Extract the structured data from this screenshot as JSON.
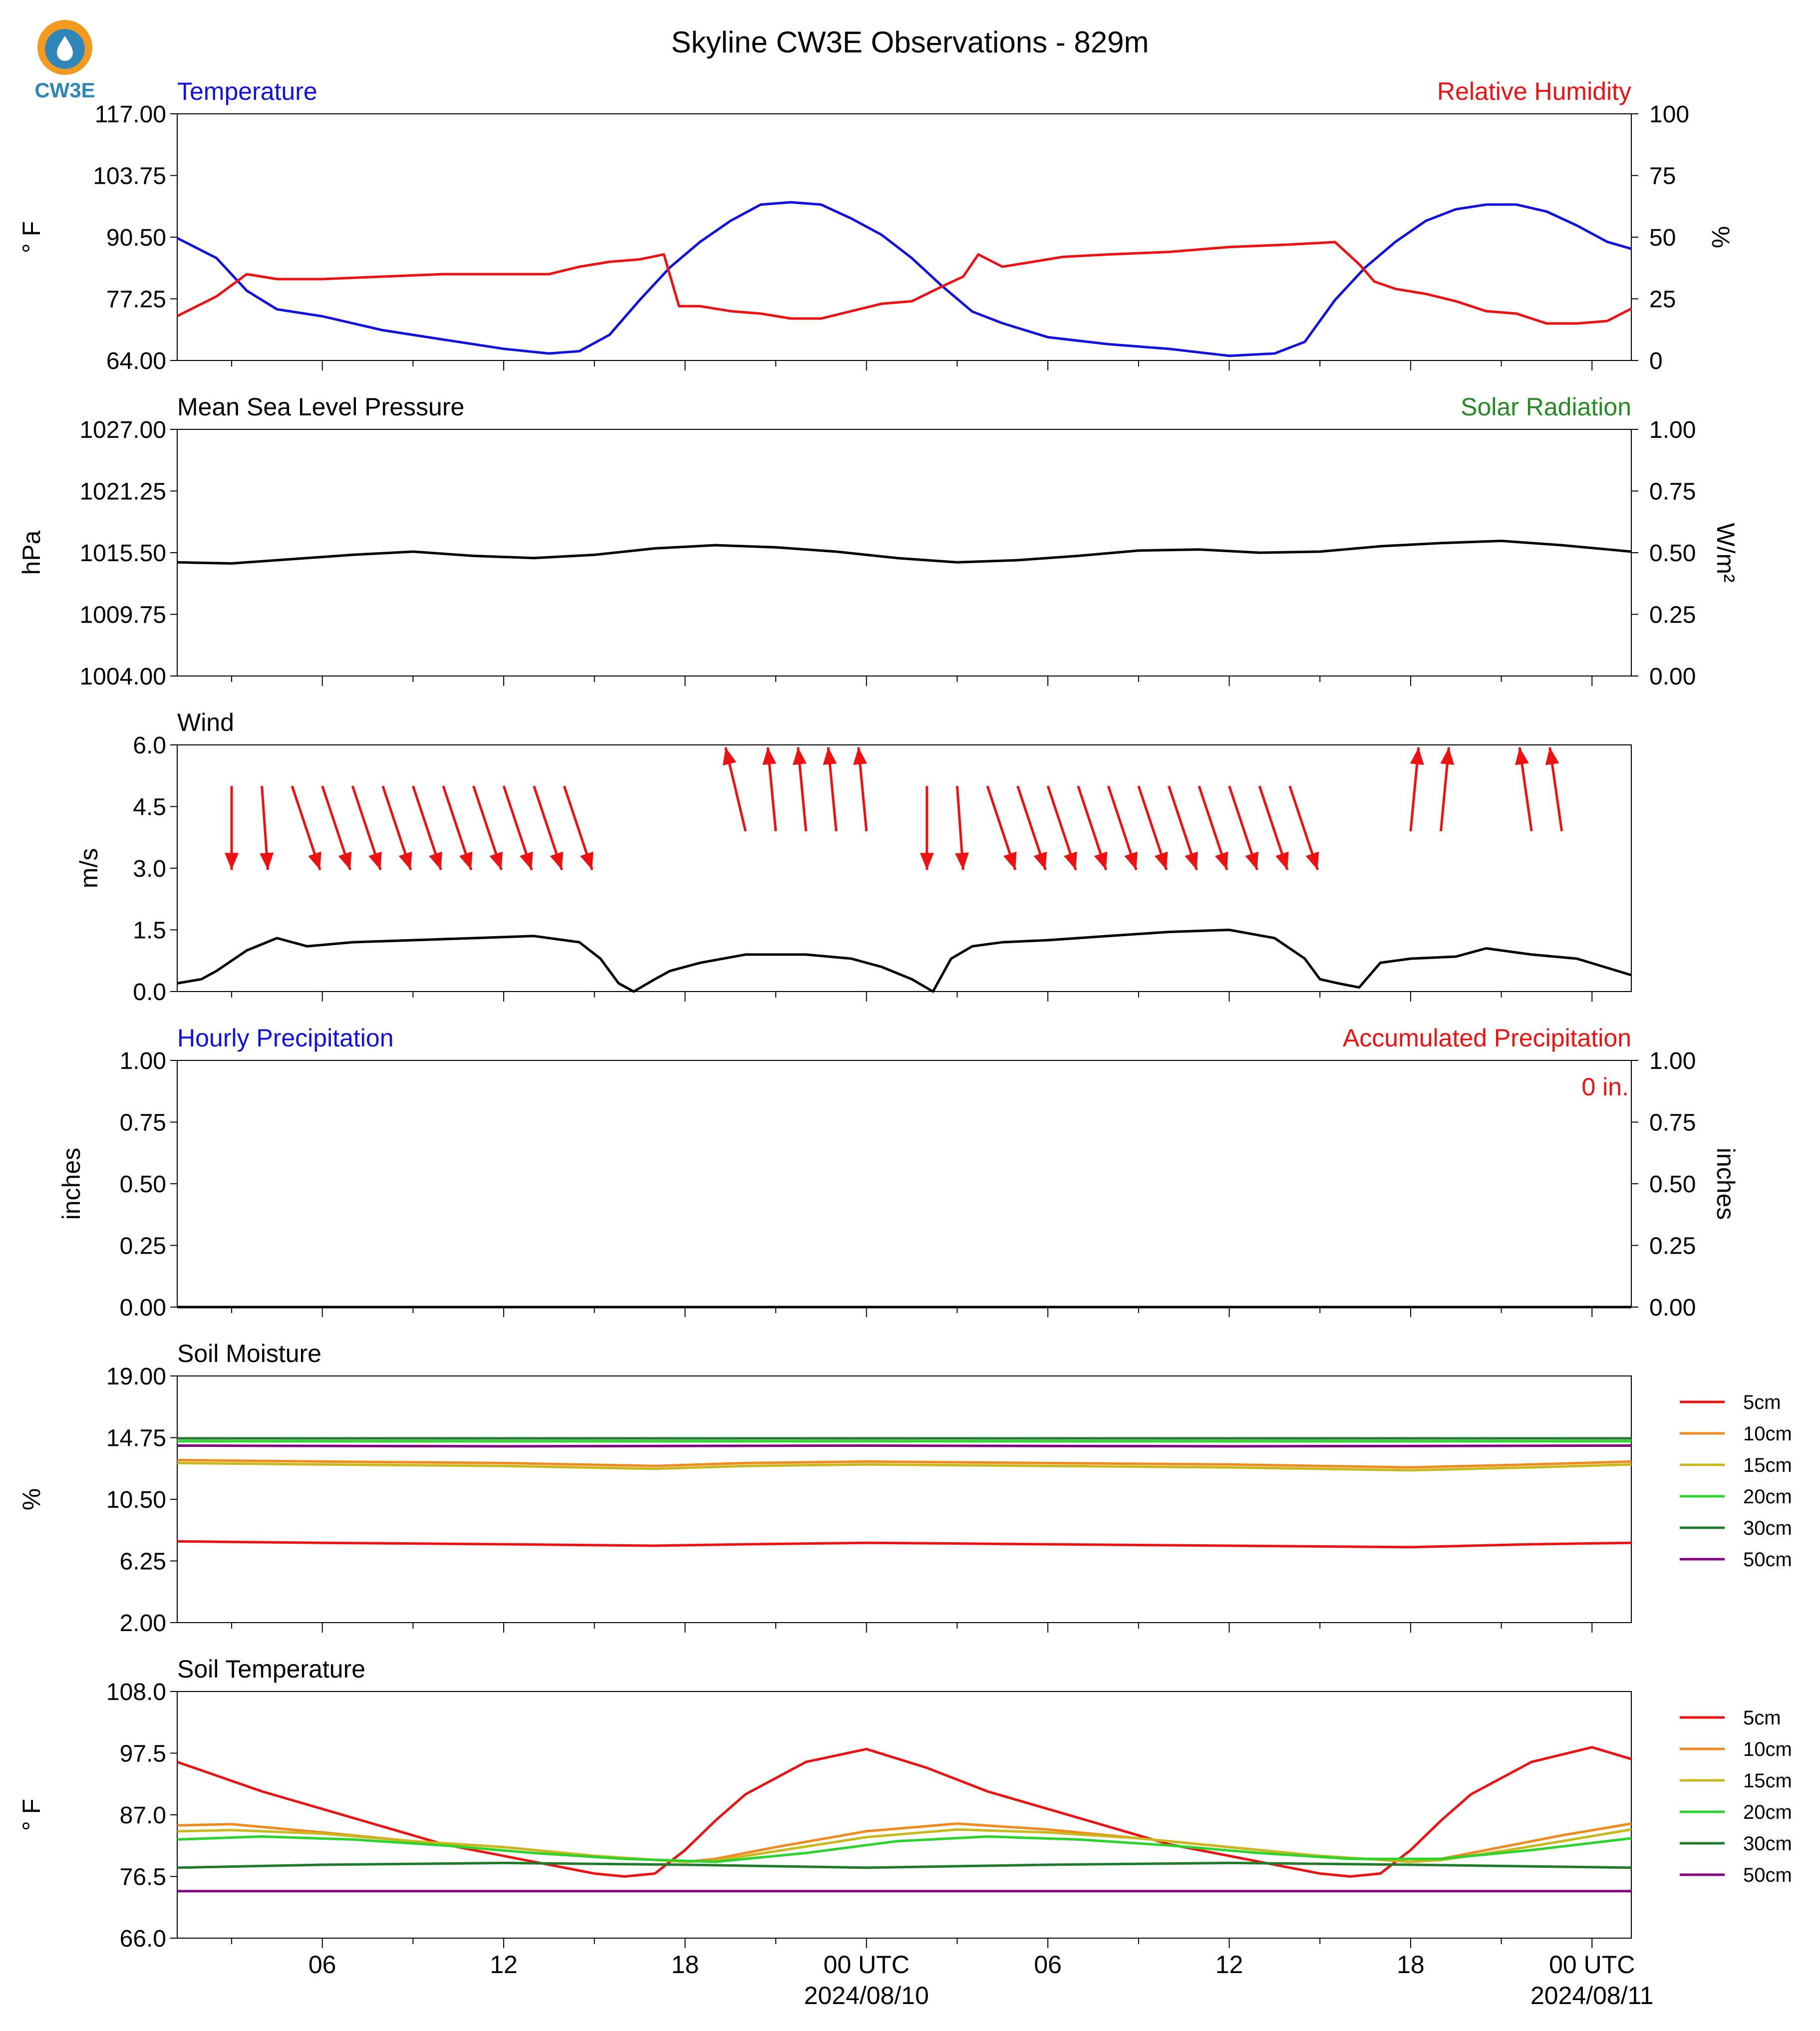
{
  "page": {
    "title": "Skyline CW3E Observations - 829m",
    "logo_text": "CW3E"
  },
  "colors": {
    "temperature": "#1010e0",
    "humidity": "#ee1111",
    "solar": "#228b22",
    "black": "#000000",
    "depths": [
      "#ee1111",
      "#f08a1c",
      "#c8b81c",
      "#2ad42a",
      "#1f7a2a",
      "#800080"
    ]
  },
  "x_axis": {
    "start_hour": 1.2,
    "end_hour": 49.3,
    "tick_hours": [
      6,
      12,
      18,
      24,
      30,
      36,
      42,
      48
    ],
    "tick_labels": [
      "06",
      "12",
      "18",
      "00 UTC\n2024/08/10",
      "06",
      "12",
      "18",
      "00 UTC\n2024/08/11"
    ]
  },
  "chart_data": [
    {
      "id": "temp_rh",
      "type": "line",
      "left_title": "Temperature",
      "right_title": "Relative Humidity",
      "ylabel": "° F",
      "ylabel_right": "%",
      "ylim": [
        64.0,
        117.0
      ],
      "ylim_right": [
        0,
        100
      ],
      "yticks": [
        "64.00",
        "77.25",
        "90.50",
        "103.75",
        "117.00"
      ],
      "yticks_right": [
        "0",
        "25",
        "50",
        "75",
        "100"
      ],
      "series": [
        {
          "name": "Temperature",
          "axis": "left",
          "x": [
            1.2,
            2.5,
            3.5,
            4.5,
            6,
            8,
            10,
            12,
            13.5,
            14.5,
            15.5,
            16.5,
            17.5,
            18.5,
            19.5,
            20.5,
            21.5,
            22.5,
            23.5,
            24.5,
            25.5,
            26.5,
            27.5,
            28.5,
            30,
            32,
            34,
            36,
            37.5,
            38.5,
            39.5,
            40.5,
            41.5,
            42.5,
            43.5,
            44.5,
            45.5,
            46.5,
            47.5,
            48.5,
            49.3
          ],
          "y": [
            90.3,
            86,
            79,
            75,
            73.5,
            70.5,
            68.5,
            66.5,
            65.5,
            66,
            69.5,
            77,
            84,
            89.5,
            94,
            97.5,
            98,
            97.5,
            94.5,
            91,
            86,
            80,
            74.5,
            72,
            69,
            67.5,
            66.5,
            65,
            65.5,
            68,
            77,
            84,
            89.5,
            94,
            96.5,
            97.5,
            97.5,
            96,
            93,
            89.5,
            88
          ]
        },
        {
          "name": "Relative Humidity",
          "axis": "right",
          "x": [
            1.2,
            2.5,
            3.5,
            4.5,
            6,
            8,
            10,
            12,
            13.5,
            14.5,
            15.5,
            16.5,
            17.3,
            17.8,
            18.5,
            19.5,
            20.5,
            21.5,
            22.5,
            23.5,
            24.5,
            25.5,
            26.5,
            27.2,
            27.7,
            28.5,
            29.5,
            30.5,
            32,
            34,
            36,
            38,
            39.5,
            40.3,
            40.8,
            41.5,
            42.5,
            43.5,
            44.5,
            45.5,
            46.5,
            47.5,
            48.5,
            49.3
          ],
          "y": [
            18,
            26,
            35,
            33,
            33,
            34,
            35,
            35,
            35,
            38,
            40,
            41,
            43,
            22,
            22,
            20,
            19,
            17,
            17,
            20,
            23,
            24,
            30,
            34,
            43,
            38,
            40,
            42,
            43,
            44,
            46,
            47,
            48,
            39,
            32,
            29,
            27,
            24,
            20,
            19,
            15,
            15,
            16,
            21
          ]
        }
      ]
    },
    {
      "id": "mslp",
      "type": "line",
      "left_title": "Mean Sea Level Pressure",
      "right_title": "Solar Radiation",
      "ylabel": "hPa",
      "ylabel_right": "W/m²",
      "ylim": [
        1004.0,
        1027.0
      ],
      "ylim_right": [
        0,
        1
      ],
      "yticks": [
        "1004.00",
        "1009.75",
        "1015.50",
        "1021.25",
        "1027.00"
      ],
      "yticks_right": [
        "0.00",
        "0.25",
        "0.50",
        "0.75",
        "1.00"
      ],
      "series": [
        {
          "name": "Mean Sea Level Pressure",
          "axis": "left",
          "x": [
            1.2,
            3,
            5,
            7,
            9,
            11,
            13,
            15,
            17,
            19,
            21,
            23,
            25,
            27,
            29,
            31,
            33,
            35,
            37,
            39,
            41,
            43,
            45,
            47,
            49.3
          ],
          "y": [
            1014.6,
            1014.5,
            1014.9,
            1015.3,
            1015.6,
            1015.2,
            1015.0,
            1015.3,
            1015.9,
            1016.2,
            1016.0,
            1015.6,
            1015.0,
            1014.6,
            1014.8,
            1015.2,
            1015.7,
            1015.8,
            1015.5,
            1015.6,
            1016.1,
            1016.4,
            1016.6,
            1016.2,
            1015.6
          ]
        }
      ]
    },
    {
      "id": "wind",
      "type": "line",
      "left_title": "Wind",
      "right_title": "",
      "ylabel": "m/s",
      "ylim": [
        0.0,
        6.0
      ],
      "yticks": [
        "0.0",
        "1.5",
        "3.0",
        "4.5",
        "6.0"
      ],
      "series": [
        {
          "name": "Wind speed",
          "axis": "left",
          "x": [
            1.2,
            2,
            2.5,
            3.5,
            4.5,
            5.5,
            7,
            9,
            11,
            13,
            14.5,
            15.2,
            15.8,
            16.3,
            17,
            17.5,
            18.5,
            20,
            22,
            23.5,
            24.5,
            25.5,
            26.2,
            26.8,
            27.5,
            28.5,
            30,
            32,
            34,
            36,
            37.5,
            38.5,
            39,
            39.6,
            40.3,
            41,
            42,
            43.5,
            44.5,
            46,
            47.5,
            49.3
          ],
          "y": [
            0.2,
            0.3,
            0.5,
            1.0,
            1.3,
            1.1,
            1.2,
            1.25,
            1.3,
            1.35,
            1.2,
            0.8,
            0.2,
            0.0,
            0.3,
            0.5,
            0.7,
            0.9,
            0.9,
            0.8,
            0.6,
            0.3,
            0.0,
            0.8,
            1.1,
            1.2,
            1.25,
            1.35,
            1.45,
            1.5,
            1.3,
            0.8,
            0.3,
            0.2,
            0.1,
            0.7,
            0.8,
            0.85,
            1.05,
            0.9,
            0.8,
            0.4
          ]
        }
      ],
      "vectors": {
        "hours": [
          3,
          4,
          5,
          6,
          7,
          8,
          9,
          10,
          11,
          12,
          13,
          14,
          20,
          21,
          22,
          23,
          24,
          26,
          27,
          28,
          29,
          30,
          31,
          32,
          33,
          34,
          35,
          36,
          37,
          38,
          42,
          43,
          46,
          47
        ],
        "dx": [
          0,
          0.15,
          0.7,
          0.7,
          0.7,
          0.7,
          0.7,
          0.7,
          0.7,
          0.7,
          0.7,
          0.7,
          -0.5,
          -0.2,
          -0.2,
          -0.2,
          -0.2,
          0,
          0.15,
          0.7,
          0.7,
          0.7,
          0.7,
          0.7,
          0.7,
          0.7,
          0.7,
          0.7,
          0.7,
          0.7,
          0.2,
          0.2,
          -0.3,
          -0.3
        ],
        "dy": [
          2.1,
          2.1,
          2.1,
          2.1,
          2.1,
          2.1,
          2.1,
          2.1,
          2.1,
          2.1,
          2.1,
          2.1,
          -2.1,
          -2.1,
          -2.1,
          -2.1,
          -2.1,
          2.1,
          2.1,
          2.1,
          2.1,
          2.1,
          2.1,
          2.1,
          2.1,
          2.1,
          2.1,
          2.1,
          2.1,
          2.1,
          -2.1,
          -2.1,
          -2.1,
          -2.1
        ]
      }
    },
    {
      "id": "precip",
      "type": "line",
      "left_title": "Hourly Precipitation",
      "right_title": "Accumulated Precipitation",
      "annotation": "0 in.",
      "ylabel": "inches",
      "ylabel_right": "inches",
      "ylim": [
        0.0,
        1.0
      ],
      "ylim_right": [
        0,
        1
      ],
      "yticks": [
        "0.00",
        "0.25",
        "0.50",
        "0.75",
        "1.00"
      ],
      "yticks_right": [
        "0.00",
        "0.25",
        "0.50",
        "0.75",
        "1.00"
      ],
      "series": [
        {
          "name": "Hourly Precipitation",
          "axis": "left",
          "x": [
            1.2,
            49.3
          ],
          "y": [
            0,
            0
          ]
        }
      ]
    },
    {
      "id": "soil_moisture",
      "type": "line",
      "left_title": "Soil Moisture",
      "right_title": "",
      "ylabel": "%",
      "ylim": [
        2.0,
        19.0
      ],
      "yticks": [
        "2.00",
        "6.25",
        "10.50",
        "14.75",
        "19.00"
      ],
      "legend": [
        "5cm",
        "10cm",
        "15cm",
        "20cm",
        "30cm",
        "50cm"
      ],
      "series": [
        {
          "name": "5cm",
          "x": [
            1.2,
            6,
            12,
            17,
            20,
            24,
            30,
            36,
            42,
            46,
            49.3
          ],
          "y": [
            7.6,
            7.5,
            7.4,
            7.3,
            7.4,
            7.5,
            7.4,
            7.3,
            7.2,
            7.4,
            7.5
          ]
        },
        {
          "name": "10cm",
          "x": [
            1.2,
            6,
            12,
            17,
            20,
            24,
            30,
            36,
            42,
            46,
            49.3
          ],
          "y": [
            13.2,
            13.1,
            13.0,
            12.8,
            13.0,
            13.1,
            13.0,
            12.9,
            12.7,
            12.9,
            13.1
          ]
        },
        {
          "name": "15cm",
          "x": [
            1.2,
            6,
            12,
            17,
            20,
            24,
            30,
            36,
            42,
            46,
            49.3
          ],
          "y": [
            13.0,
            12.9,
            12.8,
            12.6,
            12.8,
            12.9,
            12.8,
            12.7,
            12.5,
            12.7,
            12.9
          ]
        },
        {
          "name": "20cm",
          "x": [
            1.2,
            49.3
          ],
          "y": [
            14.5,
            14.5
          ]
        },
        {
          "name": "30cm",
          "x": [
            1.2,
            49.3
          ],
          "y": [
            14.7,
            14.7
          ]
        },
        {
          "name": "50cm",
          "x": [
            1.2,
            12,
            24,
            36,
            49.3
          ],
          "y": [
            14.2,
            14.15,
            14.2,
            14.15,
            14.2
          ]
        }
      ]
    },
    {
      "id": "soil_temperature",
      "type": "line",
      "left_title": "Soil Temperature",
      "right_title": "",
      "ylabel": "° F",
      "ylim": [
        66.0,
        108.0
      ],
      "yticks": [
        "66.0",
        "76.5",
        "87.0",
        "97.5",
        "108.0"
      ],
      "legend": [
        "5cm",
        "10cm",
        "15cm",
        "20cm",
        "30cm",
        "50cm"
      ],
      "series": [
        {
          "name": "5cm",
          "x": [
            1.2,
            4,
            7,
            10,
            13,
            15,
            16,
            17,
            18,
            19,
            20,
            22,
            24,
            26,
            28,
            31,
            34,
            37,
            39,
            40,
            41,
            42,
            43,
            44,
            46,
            48,
            49.3
          ],
          "y": [
            96,
            91,
            86.5,
            82,
            79,
            77,
            76.5,
            77,
            81,
            86,
            90.5,
            96,
            98.2,
            95,
            91,
            86.5,
            82,
            79,
            77,
            76.5,
            77,
            81,
            86,
            90.5,
            96,
            98.5,
            96.5
          ]
        },
        {
          "name": "10cm",
          "x": [
            1.2,
            3,
            6,
            9,
            12,
            15,
            18,
            19,
            21,
            24,
            27,
            30,
            33,
            36,
            39,
            42,
            43,
            45,
            47,
            49.3
          ],
          "y": [
            85.2,
            85.4,
            84,
            82.5,
            81.5,
            80,
            79,
            79.5,
            81.5,
            84.2,
            85.5,
            84.5,
            83,
            81.5,
            80,
            79,
            79.5,
            81.5,
            83.5,
            85.5
          ]
        },
        {
          "name": "15cm",
          "x": [
            1.2,
            3,
            6,
            9,
            12,
            15,
            18,
            19,
            21,
            24,
            27,
            30,
            33,
            36,
            39,
            42,
            43,
            45,
            47,
            49.3
          ],
          "y": [
            84.2,
            84.4,
            83.8,
            82.5,
            81.5,
            80,
            79,
            79.2,
            80.8,
            83.2,
            84.5,
            84,
            83,
            81.5,
            80,
            79,
            79.3,
            80.8,
            82.5,
            84.5
          ]
        },
        {
          "name": "20cm",
          "x": [
            1.2,
            4,
            7,
            10,
            13,
            16,
            19,
            22,
            25,
            28,
            31,
            34,
            37,
            40,
            43,
            46,
            49.3
          ],
          "y": [
            82.8,
            83.3,
            82.8,
            81.8,
            80.5,
            79.5,
            79,
            80.5,
            82.5,
            83.3,
            82.8,
            81.8,
            80.5,
            79.5,
            79.5,
            81,
            83
          ]
        },
        {
          "name": "30cm",
          "x": [
            1.2,
            6,
            12,
            18,
            24,
            30,
            36,
            42,
            49.3
          ],
          "y": [
            78,
            78.5,
            78.8,
            78.5,
            78,
            78.5,
            78.8,
            78.5,
            78
          ]
        },
        {
          "name": "50cm",
          "x": [
            1.2,
            49.3
          ],
          "y": [
            74,
            74
          ]
        }
      ]
    }
  ]
}
